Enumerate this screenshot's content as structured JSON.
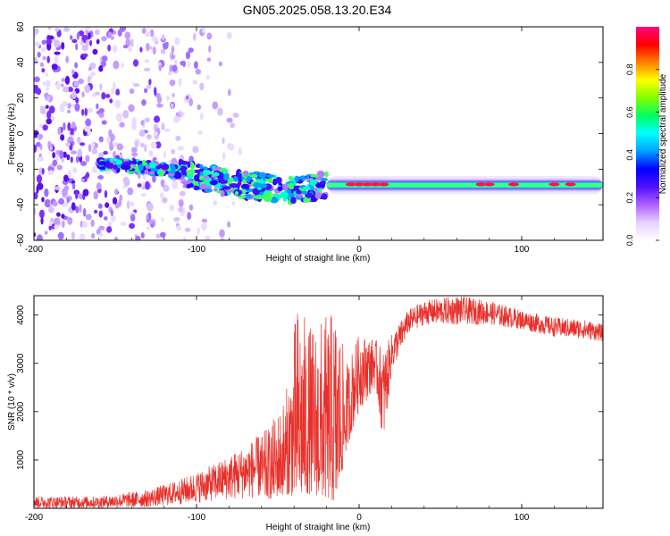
{
  "title": "GN05.2025.058.13.20.E34",
  "chart_data": [
    {
      "type": "heatmap",
      "xlabel": "Height of straight line (km)",
      "ylabel": "Frequency (Hz)",
      "xlim": [
        -200,
        150
      ],
      "ylim": [
        -60,
        60
      ],
      "xticks": [
        "-200",
        "-100",
        "0",
        "100"
      ],
      "yticks": [
        "-60",
        "-40",
        "-20",
        "0",
        "20",
        "40",
        "60"
      ],
      "colorbar": {
        "label": "Normalized spectral amplitude",
        "range": [
          0,
          1
        ],
        "ticks": [
          "0.0",
          "0.2",
          "0.4",
          "0.6",
          "0.8"
        ],
        "colors": [
          "#ffffff",
          "#e8d0ff",
          "#b060ff",
          "#5010ff",
          "#0000ff",
          "#00a0ff",
          "#00ffff",
          "#00ff60",
          "#80ff00",
          "#ffff00",
          "#ff8000",
          "#ff0000",
          "#ff0080"
        ]
      },
      "features": {
        "noise_region_x": [
          -200,
          -90
        ],
        "band_center_hz": [
          {
            "x": -160,
            "y": -17
          },
          {
            "x": -120,
            "y": -20
          },
          {
            "x": -80,
            "y": -28
          },
          {
            "x": -40,
            "y": -32
          },
          {
            "x": -20,
            "y": -29
          },
          {
            "x": 0,
            "y": -29
          },
          {
            "x": 150,
            "y": -28
          }
        ],
        "hotspots_x": [
          -5,
          0,
          5,
          10,
          15,
          75,
          80,
          95,
          120,
          130
        ]
      }
    },
    {
      "type": "line",
      "xlabel": "Height of straight line (km)",
      "ylabel": "SNR (10 * v/v)",
      "xlim": [
        -200,
        150
      ],
      "ylim": [
        0,
        4400
      ],
      "xticks": [
        "-200",
        "-100",
        "0",
        "100"
      ],
      "yticks": [
        "1000",
        "2000",
        "3000",
        "4000"
      ],
      "color": "#e8302a",
      "envelope": [
        {
          "x": -200,
          "low": 0,
          "high": 250
        },
        {
          "x": -160,
          "low": 0,
          "high": 250
        },
        {
          "x": -130,
          "low": 20,
          "high": 380
        },
        {
          "x": -110,
          "low": 80,
          "high": 600
        },
        {
          "x": -90,
          "low": 150,
          "high": 900
        },
        {
          "x": -70,
          "low": 200,
          "high": 1300
        },
        {
          "x": -55,
          "low": 200,
          "high": 1700
        },
        {
          "x": -45,
          "low": 300,
          "high": 2400
        },
        {
          "x": -38,
          "low": 200,
          "high": 4300
        },
        {
          "x": -30,
          "low": 300,
          "high": 3800
        },
        {
          "x": -20,
          "low": 200,
          "high": 4000
        },
        {
          "x": -14,
          "low": 100,
          "high": 4200
        },
        {
          "x": -8,
          "low": 1200,
          "high": 3000
        },
        {
          "x": 0,
          "low": 2000,
          "high": 3600
        },
        {
          "x": 10,
          "low": 2500,
          "high": 3500
        },
        {
          "x": 15,
          "low": 1300,
          "high": 3300
        },
        {
          "x": 20,
          "low": 2800,
          "high": 3600
        },
        {
          "x": 30,
          "low": 3600,
          "high": 4100
        },
        {
          "x": 40,
          "low": 3800,
          "high": 4300
        },
        {
          "x": 60,
          "low": 3800,
          "high": 4400
        },
        {
          "x": 80,
          "low": 3800,
          "high": 4300
        },
        {
          "x": 100,
          "low": 3700,
          "high": 4100
        },
        {
          "x": 120,
          "low": 3550,
          "high": 3950
        },
        {
          "x": 140,
          "low": 3500,
          "high": 3900
        },
        {
          "x": 150,
          "low": 3450,
          "high": 3800
        }
      ]
    }
  ]
}
